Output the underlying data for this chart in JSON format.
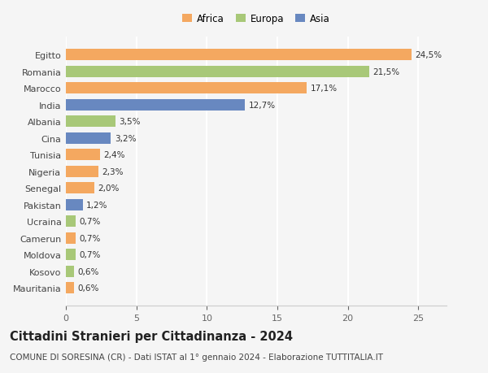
{
  "countries": [
    "Mauritania",
    "Kosovo",
    "Moldova",
    "Camerun",
    "Ucraina",
    "Pakistan",
    "Senegal",
    "Nigeria",
    "Tunisia",
    "Cina",
    "Albania",
    "India",
    "Marocco",
    "Romania",
    "Egitto"
  ],
  "values": [
    0.6,
    0.6,
    0.7,
    0.7,
    0.7,
    1.2,
    2.0,
    2.3,
    2.4,
    3.2,
    3.5,
    12.7,
    17.1,
    21.5,
    24.5
  ],
  "label_texts": [
    "0,6%",
    "0,6%",
    "0,7%",
    "0,7%",
    "0,7%",
    "1,2%",
    "2,0%",
    "2,3%",
    "2,4%",
    "3,2%",
    "3,5%",
    "12,7%",
    "17,1%",
    "21,5%",
    "24,5%"
  ],
  "continents": [
    "Africa",
    "Europa",
    "Europa",
    "Africa",
    "Europa",
    "Asia",
    "Africa",
    "Africa",
    "Africa",
    "Asia",
    "Europa",
    "Asia",
    "Africa",
    "Europa",
    "Africa"
  ],
  "colors": {
    "Africa": "#F4A860",
    "Europa": "#A8C878",
    "Asia": "#6888C0"
  },
  "xlim": [
    0,
    27
  ],
  "xticks": [
    0,
    5,
    10,
    15,
    20,
    25
  ],
  "title": "Cittadini Stranieri per Cittadinanza - 2024",
  "subtitle": "COMUNE DI SORESINA (CR) - Dati ISTAT al 1° gennaio 2024 - Elaborazione TUTTITALIA.IT",
  "background_color": "#f5f5f5",
  "bar_height": 0.68,
  "title_fontsize": 10.5,
  "subtitle_fontsize": 7.5,
  "tick_fontsize": 8,
  "label_fontsize": 7.5,
  "legend_fontsize": 8.5
}
